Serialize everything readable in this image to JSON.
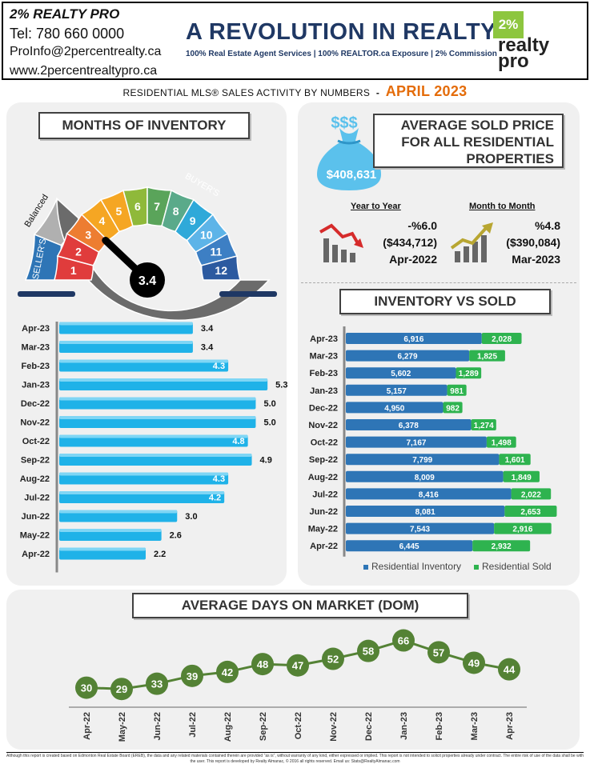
{
  "header": {
    "brand": "2% REALTY PRO",
    "tel": "Tel: 780 660 0000",
    "email": "ProInfo@2percentrealty.ca",
    "website": "www.2percentrealtypro.ca",
    "headline": "A REVOLUTION IN REALTY",
    "tagline": "100% Real Estate Agent Services | 100% REALTOR.ca Exposure | 2% Commission",
    "logo_top": "2%",
    "logo_line1": "realty",
    "logo_line2": "pro"
  },
  "subtitle": {
    "prefix": "RESIDENTIAL MLS® SALES ACTIVITY BY NUMBERS",
    "separator": "-",
    "month": "APRIL 2023"
  },
  "months_inventory": {
    "title": "MONTHS OF INVENTORY",
    "gauge": {
      "labels": {
        "sellers": "SELLER'S",
        "balanced": "Balanced",
        "buyers": "BUYER'S"
      },
      "segments": [
        {
          "n": "1",
          "color": "#e03c3c"
        },
        {
          "n": "2",
          "color": "#e03c3c"
        },
        {
          "n": "3",
          "color": "#ed7d31"
        },
        {
          "n": "4",
          "color": "#f5a623"
        },
        {
          "n": "5",
          "color": "#f5a623"
        },
        {
          "n": "6",
          "color": "#8fb93a"
        },
        {
          "n": "7",
          "color": "#5aa45a"
        },
        {
          "n": "8",
          "color": "#5aaa8a"
        },
        {
          "n": "9",
          "color": "#2fa9d9"
        },
        {
          "n": "10",
          "color": "#5db4e8"
        },
        {
          "n": "11",
          "color": "#3d7fc4"
        },
        {
          "n": "12",
          "color": "#2c5aa0"
        }
      ],
      "value": "3.4",
      "needle_value": 3.4
    }
  },
  "avg_price": {
    "title_lines": [
      "AVERAGE  SOLD PRICE",
      "FOR ALL RESIDENTIAL",
      "PROPERTIES"
    ],
    "bag_dollars": "$$$",
    "amount": "$408,631",
    "yoy": {
      "label": "Year to Year",
      "pct": "-%6.0",
      "price": "($434,712)",
      "period": "Apr-2022"
    },
    "mom": {
      "label": "Month to Month",
      "pct": "%4.8",
      "price": "($390,084)",
      "period": "Mar-2023"
    }
  },
  "inventory_vs_sold_title": "INVENTORY VS SOLD",
  "dom_title": "AVERAGE DAYS ON MARKET (DOM)",
  "colors": {
    "inventory": "#2e75b6",
    "sold": "#2eb34f",
    "moi": "#1fb2e8",
    "dom": "#548235"
  },
  "chart_data": [
    {
      "type": "bar",
      "orientation": "horizontal",
      "categories": [
        "Apr-23",
        "Mar-23",
        "Feb-23",
        "Jan-23",
        "Dec-22",
        "Nov-22",
        "Oct-22",
        "Sep-22",
        "Aug-22",
        "Jul-22",
        "Jun-22",
        "May-22",
        "Apr-22"
      ],
      "values": [
        3.4,
        3.4,
        4.3,
        5.3,
        5.0,
        5.0,
        4.8,
        4.9,
        4.3,
        4.2,
        3.0,
        2.6,
        2.2
      ],
      "value_labels": [
        "3.4",
        "3.4",
        "4.3",
        "5.3",
        "5.0",
        "5.0",
        "4.8",
        "4.9",
        "4.3",
        "4.2",
        "3.0",
        "2.6",
        "2.2"
      ],
      "title": "",
      "xlabel": "",
      "ylabel": "",
      "xlim": [
        0,
        5.5
      ]
    },
    {
      "type": "bar",
      "orientation": "horizontal",
      "stacked": true,
      "categories": [
        "Apr-23",
        "Mar-23",
        "Feb-23",
        "Jan-23",
        "Dec-22",
        "Nov-22",
        "Oct-22",
        "Sep-22",
        "Aug-22",
        "Jul-22",
        "Jun-22",
        "May-22",
        "Apr-22"
      ],
      "series": [
        {
          "name": "Residential Inventory",
          "values": [
            6916,
            6279,
            5602,
            5157,
            4950,
            6378,
            7167,
            7799,
            8009,
            8416,
            8081,
            7543,
            6445
          ],
          "labels": [
            "6,916",
            "6,279",
            "5,602",
            "5,157",
            "4,950",
            "6,378",
            "7,167",
            "7,799",
            "8,009",
            "8,416",
            "8,081",
            "7,543",
            "6,445"
          ]
        },
        {
          "name": "Residential Sold",
          "values": [
            2028,
            1825,
            1289,
            981,
            982,
            1274,
            1498,
            1601,
            1849,
            2022,
            2653,
            2916,
            2932
          ],
          "labels": [
            "2,028",
            "1,825",
            "1,289",
            "981",
            "982",
            "1,274",
            "1,498",
            "1,601",
            "1,849",
            "2,022",
            "2,653",
            "2,916",
            "2,932"
          ]
        }
      ],
      "legend": "bottom",
      "title": "",
      "xlabel": "",
      "ylabel": "",
      "xlim": [
        0,
        11000
      ]
    },
    {
      "type": "line",
      "categories": [
        "Apr-22",
        "May-22",
        "Jun-22",
        "Jul-22",
        "Aug-22",
        "Sep-22",
        "Oct-22",
        "Nov-22",
        "Dec-22",
        "Jan-23",
        "Feb-23",
        "Mar-23",
        "Apr-23"
      ],
      "values": [
        30,
        29,
        33,
        39,
        42,
        48,
        47,
        52,
        58,
        66,
        57,
        49,
        44
      ],
      "title": "",
      "xlabel": "",
      "ylabel": "",
      "ylim": [
        20,
        70
      ]
    }
  ],
  "footer": "Although this report is created based on Edmonton Real Estate Board (EREB), the data and any related materials contained therein are provided \"as is\", without warranty of any kind, either expressed or implied.  This report is not intended to solicit properties already under contract.  The entire risk of use of the data shall be with the user.  This report is developed by Realty Almanac, © 2016 all rights reserved. Email us: Stats@RealtyAlmanac.com"
}
